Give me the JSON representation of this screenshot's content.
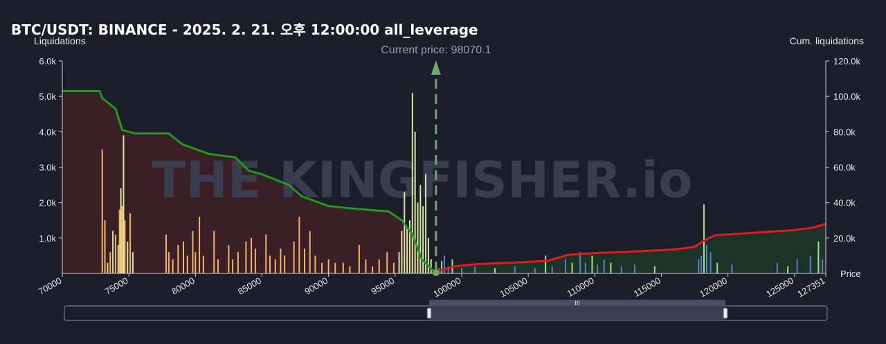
{
  "title": "BTC/USDT: BINANCE - 2025. 2. 21. 오후 12:00:00 all_leverage",
  "chart_data": {
    "type": "bar",
    "left_axis_title": "Liquidations",
    "right_axis_title": "Cum. liquidations",
    "x_axis_end_label": "Price",
    "current_price_label": "Current price: 98070.1",
    "current_price": 98070.1,
    "xlim": [
      70000,
      127351
    ],
    "ylim_left": [
      0,
      6000
    ],
    "ylim_right": [
      0,
      120000
    ],
    "x_ticks": [
      "70000",
      "75000",
      "80000",
      "85000",
      "90000",
      "95000",
      "100000",
      "105000",
      "110000",
      "115000",
      "120000",
      "125000",
      "127351"
    ],
    "y_left_ticks": [
      "1.0k",
      "2.0k",
      "3.0k",
      "4.0k",
      "5.0k",
      "6.0k"
    ],
    "y_right_ticks": [
      "20.0k",
      "40.0k",
      "60.0k",
      "80.0k",
      "100.0k",
      "120.0k"
    ],
    "watermark": "THE KINGFISHER.io",
    "colors": {
      "background": "#1b1d2b",
      "long_bars_near": "#f5b366",
      "long_bars_far": "#d8e6a0",
      "short_bars_blue": "#5b7fc8",
      "short_bars_green": "#a8e08a",
      "cum_long_line": "#1f9a1f",
      "cum_short_line": "#e01b1b",
      "cum_long_fill": "#3a1f27",
      "cum_short_fill": "#1c3327",
      "current_price_line": "#6fa86a"
    },
    "series": [
      {
        "name": "long_liquidation_bars",
        "points": [
          [
            73000,
            3500
          ],
          [
            73200,
            1500
          ],
          [
            73400,
            300
          ],
          [
            73600,
            600
          ],
          [
            73800,
            1200
          ],
          [
            74000,
            1100
          ],
          [
            74200,
            800
          ],
          [
            74300,
            1800
          ],
          [
            74400,
            2400
          ],
          [
            74500,
            1900
          ],
          [
            74600,
            3900
          ],
          [
            74700,
            1500
          ],
          [
            74900,
            900
          ],
          [
            75100,
            1700
          ],
          [
            75300,
            600
          ],
          [
            77800,
            1100
          ],
          [
            78000,
            600
          ],
          [
            78300,
            400
          ],
          [
            78700,
            800
          ],
          [
            79100,
            900
          ],
          [
            79400,
            500
          ],
          [
            79800,
            1200
          ],
          [
            80000,
            600
          ],
          [
            80300,
            1600
          ],
          [
            80600,
            500
          ],
          [
            81400,
            1200
          ],
          [
            81700,
            400
          ],
          [
            82500,
            800
          ],
          [
            82800,
            400
          ],
          [
            83200,
            600
          ],
          [
            83800,
            900
          ],
          [
            84200,
            1000
          ],
          [
            84500,
            700
          ],
          [
            85300,
            1100
          ],
          [
            85600,
            500
          ],
          [
            86000,
            400
          ],
          [
            86400,
            700
          ],
          [
            86700,
            500
          ],
          [
            87400,
            900
          ],
          [
            87800,
            1600
          ],
          [
            88200,
            700
          ],
          [
            88600,
            1200
          ],
          [
            89000,
            500
          ],
          [
            89500,
            300
          ],
          [
            90000,
            400
          ],
          [
            90500,
            300
          ],
          [
            91100,
            300
          ],
          [
            91600,
            200
          ],
          [
            92300,
            800
          ],
          [
            92800,
            400
          ],
          [
            93300,
            200
          ],
          [
            93800,
            400
          ],
          [
            94400,
            600
          ],
          [
            94900,
            300
          ],
          [
            95300,
            600
          ],
          [
            95500,
            1200
          ],
          [
            95700,
            2300
          ],
          [
            95900,
            1300
          ],
          [
            96100,
            1500
          ],
          [
            96300,
            5100
          ],
          [
            96500,
            4000
          ],
          [
            96700,
            2000
          ],
          [
            96900,
            2500
          ],
          [
            97100,
            1900
          ],
          [
            97300,
            2800
          ],
          [
            97500,
            1000
          ],
          [
            97700,
            400
          ]
        ]
      },
      {
        "name": "short_liquidation_bars",
        "points": [
          [
            98300,
            150
          ],
          [
            98500,
            350
          ],
          [
            98700,
            500
          ],
          [
            99000,
            200
          ],
          [
            99300,
            400
          ],
          [
            100000,
            150
          ],
          [
            101000,
            200
          ],
          [
            102500,
            150
          ],
          [
            104000,
            200
          ],
          [
            105500,
            150
          ],
          [
            106300,
            500
          ],
          [
            106800,
            200
          ],
          [
            107800,
            400
          ],
          [
            108300,
            300
          ],
          [
            108900,
            600
          ],
          [
            109300,
            300
          ],
          [
            109800,
            500
          ],
          [
            110200,
            250
          ],
          [
            110700,
            400
          ],
          [
            111200,
            300
          ],
          [
            112000,
            200
          ],
          [
            113000,
            250
          ],
          [
            114500,
            200
          ],
          [
            117800,
            400
          ],
          [
            118000,
            500
          ],
          [
            118200,
            1950
          ],
          [
            118400,
            800
          ],
          [
            118700,
            600
          ],
          [
            119200,
            300
          ],
          [
            120300,
            250
          ],
          [
            123700,
            300
          ],
          [
            124500,
            200
          ],
          [
            125200,
            400
          ],
          [
            126200,
            500
          ],
          [
            126800,
            900
          ],
          [
            127100,
            400
          ]
        ]
      },
      {
        "name": "cum_long_liquidations",
        "points": [
          [
            70000,
            103000
          ],
          [
            72800,
            103000
          ],
          [
            73000,
            99000
          ],
          [
            74000,
            93000
          ],
          [
            74500,
            81000
          ],
          [
            75500,
            79000
          ],
          [
            78000,
            79000
          ],
          [
            79000,
            73000
          ],
          [
            81000,
            67500
          ],
          [
            83000,
            65500
          ],
          [
            84000,
            58000
          ],
          [
            85000,
            56000
          ],
          [
            87000,
            50000
          ],
          [
            88000,
            43500
          ],
          [
            90000,
            38000
          ],
          [
            92000,
            36500
          ],
          [
            94500,
            35000
          ],
          [
            95500,
            30000
          ],
          [
            96300,
            22000
          ],
          [
            97000,
            8000
          ],
          [
            97600,
            3500
          ],
          [
            98070,
            0
          ]
        ]
      },
      {
        "name": "cum_short_liquidations",
        "points": [
          [
            98070,
            0
          ],
          [
            98500,
            2000
          ],
          [
            99500,
            4000
          ],
          [
            101000,
            5200
          ],
          [
            103000,
            5800
          ],
          [
            105000,
            6500
          ],
          [
            106500,
            7200
          ],
          [
            108000,
            10500
          ],
          [
            110000,
            11500
          ],
          [
            112000,
            12000
          ],
          [
            114000,
            12800
          ],
          [
            116000,
            13500
          ],
          [
            117500,
            15000
          ],
          [
            118200,
            18500
          ],
          [
            119000,
            21500
          ],
          [
            121000,
            22500
          ],
          [
            123000,
            23500
          ],
          [
            125000,
            24500
          ],
          [
            126500,
            26000
          ],
          [
            127351,
            28000
          ]
        ]
      }
    ]
  }
}
